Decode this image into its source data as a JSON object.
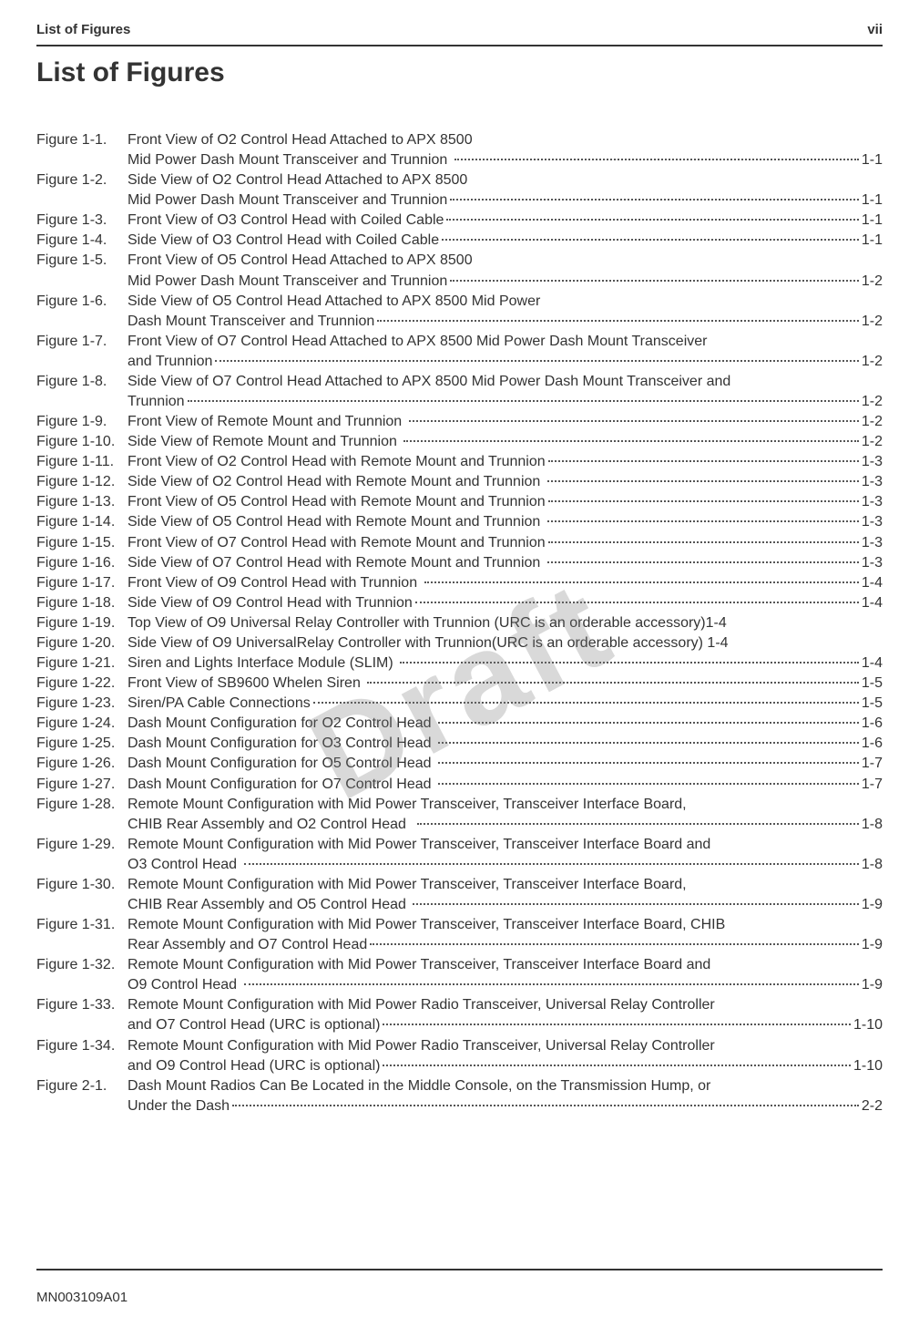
{
  "header": {
    "left": "List of Figures",
    "right": "vii"
  },
  "title": "List of Figures",
  "watermark": "Draft",
  "footer": "MN003109A01",
  "entries": [
    {
      "label": "Figure 1-1.",
      "lines": [
        "Front View of O2 Control Head Attached to APX 8500",
        "Mid Power Dash Mount Transceiver and Trunnion "
      ],
      "page": "1-1"
    },
    {
      "label": "Figure 1-2.",
      "lines": [
        "Side View of O2 Control Head Attached to APX 8500",
        "Mid Power Dash Mount Transceiver and Trunnion"
      ],
      "page": "1-1"
    },
    {
      "label": "Figure 1-3.",
      "lines": [
        "Front View of O3 Control Head with Coiled Cable"
      ],
      "page": "1-1"
    },
    {
      "label": "Figure 1-4.",
      "lines": [
        "Side View of O3 Control Head with Coiled Cable"
      ],
      "page": "1-1"
    },
    {
      "label": "Figure 1-5.",
      "lines": [
        "Front View of O5 Control Head Attached to APX 8500",
        "Mid Power Dash Mount Transceiver and Trunnion"
      ],
      "page": "1-2"
    },
    {
      "label": "Figure 1-6.",
      "lines": [
        "Side View of O5 Control Head Attached to APX 8500 Mid Power",
        "Dash Mount Transceiver and Trunnion"
      ],
      "page": "1-2"
    },
    {
      "label": "Figure 1-7.",
      "lines": [
        "Front View of O7 Control Head Attached to APX 8500 Mid Power Dash Mount Transceiver",
        "and Trunnion"
      ],
      "page": "1-2"
    },
    {
      "label": "Figure 1-8.",
      "lines": [
        "Side View of O7 Control Head Attached to APX 8500 Mid Power Dash Mount Transceiver and",
        "Trunnion"
      ],
      "page": "1-2"
    },
    {
      "label": "Figure 1-9.",
      "lines": [
        "Front View of Remote Mount and Trunnion "
      ],
      "page": "1-2"
    },
    {
      "label": "Figure 1-10.",
      "lines": [
        "Side View of Remote Mount and Trunnion "
      ],
      "page": "1-2"
    },
    {
      "label": "Figure 1-11.",
      "lines": [
        "Front View of O2 Control Head with Remote Mount and Trunnion"
      ],
      "page": "1-3"
    },
    {
      "label": "Figure 1-12.",
      "lines": [
        "Side View of O2 Control Head with Remote Mount and Trunnion "
      ],
      "page": "1-3"
    },
    {
      "label": "Figure 1-13.",
      "lines": [
        "Front View of O5 Control Head with Remote Mount and Trunnion"
      ],
      "page": "1-3"
    },
    {
      "label": "Figure 1-14.",
      "lines": [
        "Side View of O5 Control Head with Remote Mount and Trunnion "
      ],
      "page": "1-3"
    },
    {
      "label": "Figure 1-15.",
      "lines": [
        "Front View of O7 Control Head with Remote Mount and Trunnion"
      ],
      "page": "1-3"
    },
    {
      "label": "Figure 1-16.",
      "lines": [
        "Side View of O7 Control Head with Remote Mount and Trunnion "
      ],
      "page": "1-3"
    },
    {
      "label": "Figure 1-17.",
      "lines": [
        "Front View of O9 Control Head with Trunnion "
      ],
      "page": "1-4"
    },
    {
      "label": "Figure 1-18.",
      "lines": [
        "Side View of O9 Control Head with Trunnion"
      ],
      "page": "1-4"
    },
    {
      "label": "Figure 1-19.",
      "lines": [
        "Top View of O9 Universal Relay Controller with Trunnion (URC is an orderable accessory)"
      ],
      "page": "1-4",
      "nodots": true
    },
    {
      "label": "Figure 1-20.",
      "lines": [
        "Side View of O9 UniversalRelay Controller with Trunnion(URC is an orderable accessory) "
      ],
      "page": "1-4",
      "nodots": true
    },
    {
      "label": "Figure 1-21.",
      "lines": [
        "Siren and Lights Interface Module (SLIM) "
      ],
      "page": "1-4"
    },
    {
      "label": "Figure 1-22.",
      "lines": [
        "Front View of SB9600 Whelen Siren "
      ],
      "page": "1-5"
    },
    {
      "label": "Figure 1-23.",
      "lines": [
        "Siren/PA Cable Connections"
      ],
      "page": "1-5"
    },
    {
      "label": "Figure 1-24.",
      "lines": [
        "Dash Mount Configuration for O2 Control Head "
      ],
      "page": "1-6"
    },
    {
      "label": "Figure 1-25.",
      "lines": [
        "Dash Mount Configuration for O3 Control Head "
      ],
      "page": "1-6"
    },
    {
      "label": "Figure 1-26.",
      "lines": [
        "Dash Mount Configuration for O5 Control Head "
      ],
      "page": "1-7"
    },
    {
      "label": "Figure 1-27.",
      "lines": [
        "Dash Mount Configuration for O7 Control Head "
      ],
      "page": "1-7"
    },
    {
      "label": "Figure 1-28.",
      "lines": [
        "Remote Mount Configuration with Mid Power Transceiver, Transceiver Interface Board,",
        "CHIB Rear Assembly and O2 Control Head  "
      ],
      "page": "1-8"
    },
    {
      "label": "Figure 1-29.",
      "lines": [
        "Remote Mount Configuration with Mid Power Transceiver, Transceiver Interface Board and",
        "O3 Control Head "
      ],
      "page": "1-8"
    },
    {
      "label": "Figure 1-30.",
      "lines": [
        "Remote Mount Configuration with Mid Power Transceiver, Transceiver Interface Board,",
        "CHIB Rear Assembly and O5 Control Head "
      ],
      "page": "1-9"
    },
    {
      "label": "Figure 1-31.",
      "lines": [
        "Remote Mount Configuration with Mid Power Transceiver, Transceiver Interface Board, CHIB",
        "Rear Assembly and O7 Control Head"
      ],
      "page": "1-9"
    },
    {
      "label": "Figure 1-32.",
      "lines": [
        "Remote Mount Configuration with Mid Power Transceiver, Transceiver Interface Board and",
        "O9 Control Head "
      ],
      "page": "1-9"
    },
    {
      "label": "Figure 1-33.",
      "lines": [
        "Remote Mount Configuration with Mid Power Radio Transceiver, Universal Relay Controller",
        "and O7 Control Head (URC is optional)"
      ],
      "page": "1-10"
    },
    {
      "label": "Figure 1-34.",
      "lines": [
        "Remote Mount Configuration with Mid Power Radio Transceiver, Universal Relay Controller",
        "and O9 Control Head (URC is optional)"
      ],
      "page": "1-10"
    },
    {
      "label": "Figure 2-1.",
      "lines": [
        "Dash Mount Radios Can Be Located in the Middle Console, on the Transmission Hump, or",
        "Under the Dash"
      ],
      "page": "2-2"
    }
  ]
}
